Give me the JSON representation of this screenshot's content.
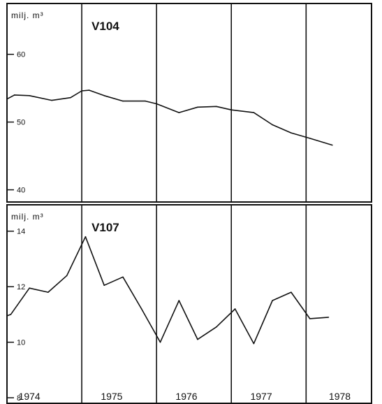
{
  "chart_data": [
    {
      "type": "line",
      "title": "V104",
      "unit_label": "milj. m³",
      "y_ticks": [
        40,
        50,
        60
      ],
      "ylim": [
        38.2,
        67.5
      ],
      "xlim": [
        1974,
        1978.875
      ],
      "x": [
        1974,
        1974.1,
        1974.3,
        1974.6,
        1974.85,
        1975.0,
        1975.1,
        1975.3,
        1975.55,
        1975.85,
        1976.0,
        1976.3,
        1976.55,
        1976.8,
        1977.0,
        1977.3,
        1977.55,
        1977.8,
        1978.05,
        1978.35
      ],
      "y": [
        53.4,
        54.0,
        53.9,
        53.2,
        53.6,
        54.6,
        54.7,
        53.9,
        53.1,
        53.1,
        52.7,
        51.4,
        52.2,
        52.3,
        51.8,
        51.4,
        49.6,
        48.4,
        47.6,
        46.6
      ],
      "year_dividers": [
        1975,
        1976,
        1977,
        1978
      ]
    },
    {
      "type": "line",
      "title": "V107",
      "unit_label": "milj. m³",
      "y_ticks": [
        8,
        10,
        12,
        14
      ],
      "ylim": [
        7.8,
        14.95
      ],
      "xlim": [
        1974,
        1978.875
      ],
      "x": [
        1974,
        1974.05,
        1974.3,
        1974.55,
        1974.8,
        1975.05,
        1975.3,
        1975.55,
        1975.8,
        1976.05,
        1976.3,
        1976.55,
        1976.8,
        1977.05,
        1977.3,
        1977.55,
        1977.8,
        1978.05,
        1978.3
      ],
      "y": [
        10.95,
        11.0,
        11.95,
        11.8,
        12.4,
        13.8,
        12.05,
        12.35,
        11.2,
        10.0,
        11.5,
        10.1,
        10.55,
        11.2,
        9.95,
        11.5,
        11.8,
        10.85,
        10.9
      ],
      "year_dividers": [
        1975,
        1976,
        1977,
        1978
      ],
      "x_tick_labels": [
        {
          "label": "1974",
          "x": 1974.3
        },
        {
          "label": "1975",
          "x": 1975.4
        },
        {
          "label": "1976",
          "x": 1976.4
        },
        {
          "label": "1977",
          "x": 1977.4
        },
        {
          "label": "1978",
          "x": 1978.45
        }
      ]
    }
  ]
}
